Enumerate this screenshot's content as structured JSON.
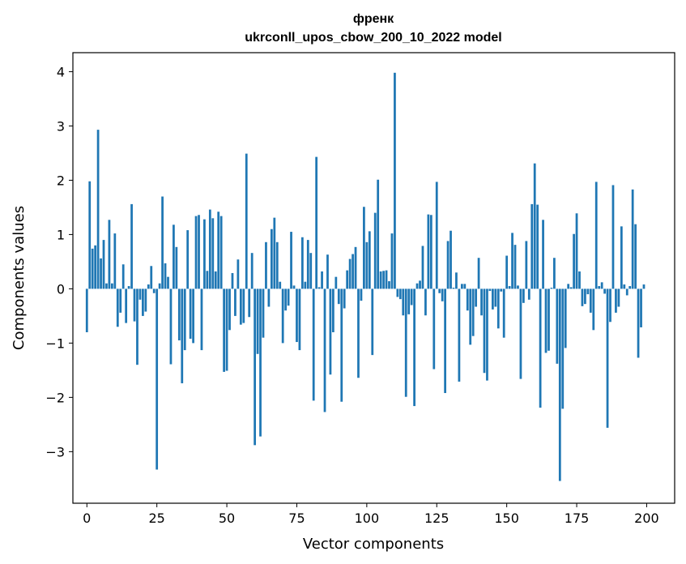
{
  "chart_data": {
    "type": "bar",
    "title_line1": "френк",
    "title_line2": "ukrconll_upos_cbow_200_10_2022 model",
    "xlabel": "Vector components",
    "ylabel": "Components values",
    "xlim": [
      -5,
      210
    ],
    "ylim": [
      -3.95,
      4.35
    ],
    "xticks": [
      0,
      25,
      50,
      75,
      100,
      125,
      150,
      175,
      200
    ],
    "yticks": [
      -3,
      -2,
      -1,
      0,
      1,
      2,
      3,
      4
    ],
    "ytick_labels": [
      "−3",
      "−2",
      "−1",
      "0",
      "1",
      "2",
      "3",
      "4"
    ],
    "bar_color": "#1f77b4",
    "grid": false,
    "values": [
      -0.8,
      1.98,
      0.74,
      0.8,
      2.93,
      0.56,
      0.9,
      0.1,
      1.27,
      0.1,
      1.02,
      -0.7,
      -0.44,
      0.45,
      -0.63,
      0.05,
      1.56,
      -0.6,
      -1.4,
      -0.2,
      -0.5,
      -0.42,
      0.08,
      0.42,
      -0.08,
      -3.33,
      0.1,
      1.7,
      0.47,
      0.22,
      -1.39,
      1.18,
      0.77,
      -0.95,
      -1.74,
      -1.13,
      1.08,
      -0.92,
      -1.0,
      1.34,
      1.36,
      -1.13,
      1.28,
      0.33,
      1.46,
      1.3,
      0.32,
      1.42,
      1.34,
      -1.53,
      -1.51,
      -0.76,
      0.29,
      -0.5,
      0.54,
      -0.66,
      -0.63,
      2.49,
      -0.52,
      0.66,
      -2.88,
      -1.2,
      -2.72,
      -0.9,
      0.86,
      -0.33,
      1.1,
      1.31,
      0.86,
      0.13,
      -1.0,
      -0.4,
      -0.31,
      1.05,
      0.06,
      -0.98,
      -1.13,
      0.95,
      0.13,
      0.9,
      0.66,
      -2.06,
      2.43,
      0.03,
      0.32,
      -2.27,
      0.63,
      -1.58,
      -0.8,
      0.22,
      -0.28,
      -2.08,
      -0.36,
      0.34,
      0.55,
      0.64,
      0.77,
      -1.64,
      -0.22,
      1.51,
      0.86,
      1.06,
      -1.22,
      1.4,
      2.01,
      0.32,
      0.33,
      0.34,
      0.14,
      1.02,
      3.98,
      -0.15,
      -0.19,
      -0.49,
      -1.99,
      -0.47,
      -0.3,
      -2.16,
      0.1,
      0.15,
      0.79,
      -0.49,
      1.37,
      1.36,
      -1.48,
      1.97,
      -0.08,
      -0.23,
      -1.92,
      0.88,
      1.07,
      0.02,
      0.3,
      -1.71,
      0.09,
      0.09,
      -0.4,
      -1.03,
      -0.87,
      -0.33,
      0.57,
      -0.49,
      -1.55,
      -1.69,
      -0.04,
      -0.38,
      -0.33,
      -0.73,
      -0.05,
      -0.9,
      0.61,
      0.05,
      1.03,
      0.81,
      0.06,
      -1.66,
      -0.26,
      0.88,
      -0.2,
      1.56,
      2.31,
      1.55,
      -2.19,
      1.27,
      -1.18,
      -1.14,
      0.02,
      0.57,
      -1.38,
      -3.54,
      -2.21,
      -1.09,
      0.09,
      0.03,
      1.01,
      1.39,
      0.32,
      -0.32,
      -0.28,
      -0.1,
      -0.44,
      -0.76,
      1.97,
      0.05,
      0.12,
      -0.09,
      -2.56,
      -0.61,
      1.91,
      -0.44,
      -0.33,
      1.15,
      0.08,
      -0.12,
      0.05,
      1.83,
      1.19,
      -1.27,
      -0.71,
      0.08
    ]
  }
}
